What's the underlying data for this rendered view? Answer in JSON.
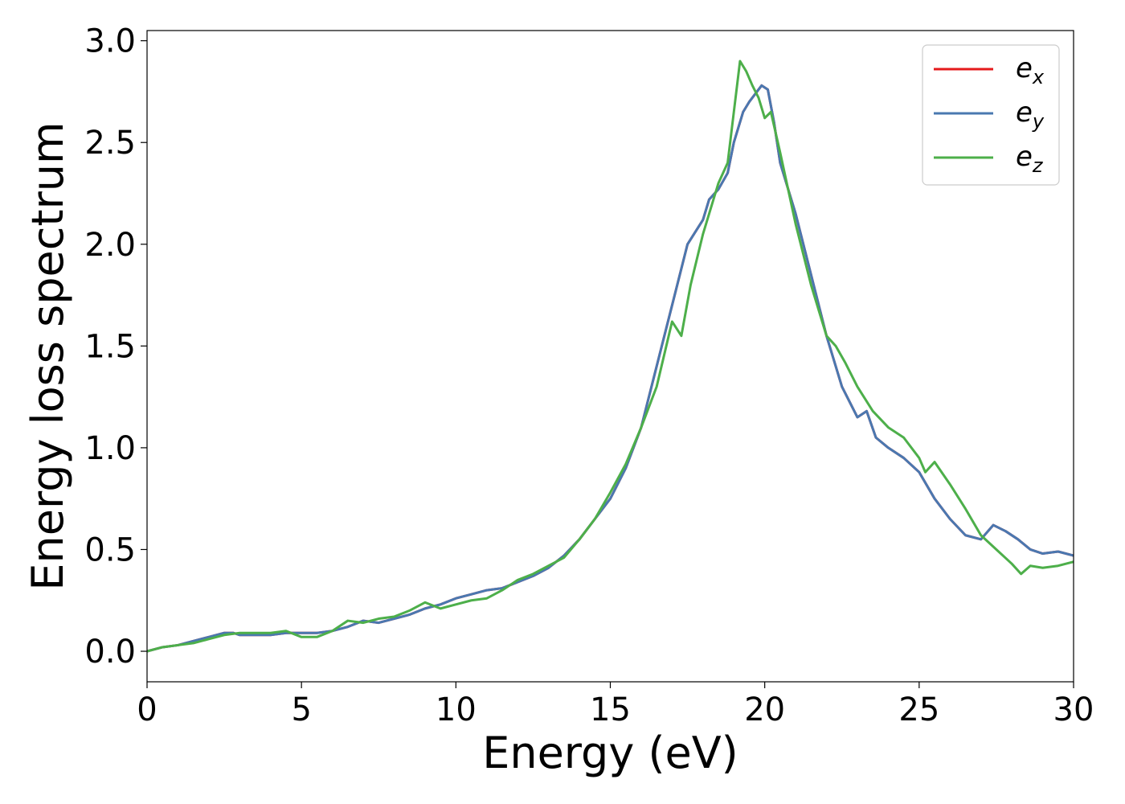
{
  "chart_data": {
    "type": "line",
    "xlabel": "Energy (eV)",
    "ylabel": "Energy loss spectrum",
    "xlim": [
      0,
      30
    ],
    "ylim": [
      -0.15,
      3.05
    ],
    "xticks": [
      0,
      5,
      10,
      15,
      20,
      25,
      30
    ],
    "yticks": [
      0.0,
      0.5,
      1.0,
      1.5,
      2.0,
      2.5,
      3.0
    ],
    "xtick_labels": [
      "0",
      "5",
      "10",
      "15",
      "20",
      "25",
      "30"
    ],
    "ytick_labels": [
      "0.0",
      "0.5",
      "1.0",
      "1.5",
      "2.0",
      "2.5",
      "3.0"
    ],
    "grid": false,
    "legend_position": "top-right",
    "series": [
      {
        "name": "e_x",
        "label_main": "e",
        "label_sub": "x",
        "color": "#e41a1c",
        "x": [
          0,
          0.5,
          1,
          1.5,
          2,
          2.5,
          2.8,
          3,
          3.5,
          4,
          4.5,
          5,
          5.5,
          6,
          6.5,
          7,
          7.5,
          8,
          8.5,
          9,
          9.5,
          10,
          10.5,
          11,
          11.5,
          12,
          12.5,
          13,
          13.5,
          14,
          14.5,
          15,
          15.5,
          16,
          16.5,
          17,
          17.5,
          18,
          18.2,
          18.5,
          18.8,
          19,
          19.3,
          19.5,
          19.7,
          19.9,
          20.1,
          20.3,
          20.5,
          21,
          21.5,
          22,
          22.5,
          23,
          23.3,
          23.6,
          24,
          24.5,
          25,
          25.5,
          26,
          26.5,
          27,
          27.4,
          27.8,
          28.2,
          28.6,
          29,
          29.5,
          30
        ],
        "y": [
          0.0,
          0.02,
          0.03,
          0.05,
          0.07,
          0.09,
          0.09,
          0.08,
          0.08,
          0.08,
          0.09,
          0.09,
          0.09,
          0.1,
          0.12,
          0.15,
          0.14,
          0.16,
          0.18,
          0.21,
          0.23,
          0.26,
          0.28,
          0.3,
          0.31,
          0.34,
          0.37,
          0.41,
          0.47,
          0.55,
          0.65,
          0.75,
          0.9,
          1.1,
          1.4,
          1.7,
          2.0,
          2.12,
          2.22,
          2.27,
          2.35,
          2.5,
          2.65,
          2.7,
          2.74,
          2.78,
          2.76,
          2.6,
          2.4,
          2.15,
          1.85,
          1.55,
          1.3,
          1.15,
          1.18,
          1.05,
          1.0,
          0.95,
          0.88,
          0.75,
          0.65,
          0.57,
          0.55,
          0.62,
          0.59,
          0.55,
          0.5,
          0.48,
          0.49,
          0.47
        ]
      },
      {
        "name": "e_y",
        "label_main": "e",
        "label_sub": "y",
        "color": "#4a78b0",
        "x": [
          0,
          0.5,
          1,
          1.5,
          2,
          2.5,
          2.8,
          3,
          3.5,
          4,
          4.5,
          5,
          5.5,
          6,
          6.5,
          7,
          7.5,
          8,
          8.5,
          9,
          9.5,
          10,
          10.5,
          11,
          11.5,
          12,
          12.5,
          13,
          13.5,
          14,
          14.5,
          15,
          15.5,
          16,
          16.5,
          17,
          17.5,
          18,
          18.2,
          18.5,
          18.8,
          19,
          19.3,
          19.5,
          19.7,
          19.9,
          20.1,
          20.3,
          20.5,
          21,
          21.5,
          22,
          22.5,
          23,
          23.3,
          23.6,
          24,
          24.5,
          25,
          25.5,
          26,
          26.5,
          27,
          27.4,
          27.8,
          28.2,
          28.6,
          29,
          29.5,
          30
        ],
        "y": [
          0.0,
          0.02,
          0.03,
          0.05,
          0.07,
          0.09,
          0.09,
          0.08,
          0.08,
          0.08,
          0.09,
          0.09,
          0.09,
          0.1,
          0.12,
          0.15,
          0.14,
          0.16,
          0.18,
          0.21,
          0.23,
          0.26,
          0.28,
          0.3,
          0.31,
          0.34,
          0.37,
          0.41,
          0.47,
          0.55,
          0.65,
          0.75,
          0.9,
          1.1,
          1.4,
          1.7,
          2.0,
          2.12,
          2.22,
          2.27,
          2.35,
          2.5,
          2.65,
          2.7,
          2.74,
          2.78,
          2.76,
          2.6,
          2.4,
          2.15,
          1.85,
          1.55,
          1.3,
          1.15,
          1.18,
          1.05,
          1.0,
          0.95,
          0.88,
          0.75,
          0.65,
          0.57,
          0.55,
          0.62,
          0.59,
          0.55,
          0.5,
          0.48,
          0.49,
          0.47
        ]
      },
      {
        "name": "e_z",
        "label_main": "e",
        "label_sub": "z",
        "color": "#4daf4a",
        "x": [
          0,
          0.5,
          1,
          1.5,
          2,
          2.5,
          3,
          3.5,
          4,
          4.5,
          5,
          5.5,
          6,
          6.5,
          7,
          7.5,
          8,
          8.5,
          9,
          9.5,
          10,
          10.5,
          11,
          11.5,
          12,
          12.5,
          13,
          13.5,
          14,
          14.5,
          15,
          15.5,
          16,
          16.5,
          17,
          17.3,
          17.6,
          18,
          18.5,
          18.8,
          19,
          19.2,
          19.4,
          19.6,
          19.8,
          20,
          20.2,
          20.5,
          21,
          21.5,
          22,
          22.3,
          22.6,
          23,
          23.5,
          24,
          24.5,
          25,
          25.2,
          25.5,
          26,
          26.5,
          27,
          27.5,
          28,
          28.3,
          28.6,
          29,
          29.5,
          30
        ],
        "y": [
          0.0,
          0.02,
          0.03,
          0.04,
          0.06,
          0.08,
          0.09,
          0.09,
          0.09,
          0.1,
          0.07,
          0.07,
          0.1,
          0.15,
          0.14,
          0.16,
          0.17,
          0.2,
          0.24,
          0.21,
          0.23,
          0.25,
          0.26,
          0.3,
          0.35,
          0.38,
          0.42,
          0.46,
          0.55,
          0.65,
          0.78,
          0.92,
          1.1,
          1.3,
          1.62,
          1.55,
          1.8,
          2.05,
          2.3,
          2.4,
          2.65,
          2.9,
          2.85,
          2.78,
          2.72,
          2.62,
          2.65,
          2.45,
          2.1,
          1.8,
          1.55,
          1.5,
          1.42,
          1.3,
          1.18,
          1.1,
          1.05,
          0.95,
          0.88,
          0.93,
          0.82,
          0.7,
          0.57,
          0.5,
          0.43,
          0.38,
          0.42,
          0.41,
          0.42,
          0.44
        ]
      }
    ]
  }
}
